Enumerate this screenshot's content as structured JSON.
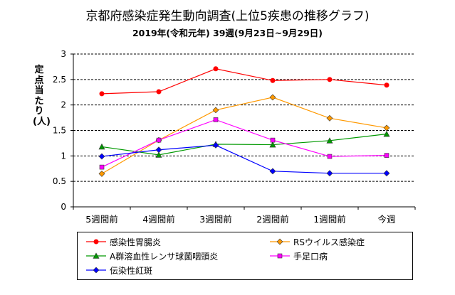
{
  "chart_data": {
    "type": "line",
    "title": "京都府感染症発生動向調査(上位5疾患の推移グラフ)",
    "subtitle": "2019年(令和元年) 39週(9月23日~9月29日)",
    "ylabel": "定点当たり(人)",
    "xlabel": "",
    "categories": [
      "5週間前",
      "4週間前",
      "3週間前",
      "2週間前",
      "1週間前",
      "今週"
    ],
    "ylim": [
      0,
      3
    ],
    "yticks": [
      "0",
      "0.5",
      "1",
      "1.5",
      "2",
      "2.5",
      "3"
    ],
    "grid": "horizontal dashed",
    "legend_position": "bottom",
    "series": [
      {
        "name": "感染性胃腸炎",
        "color": "#ff0000",
        "marker": "circle",
        "values": [
          2.22,
          2.26,
          2.71,
          2.48,
          2.5,
          2.39
        ]
      },
      {
        "name": "RSウイルス感染症",
        "color": "#ff9900",
        "marker": "diamond",
        "values": [
          0.65,
          1.31,
          1.9,
          2.15,
          1.74,
          1.55
        ]
      },
      {
        "name": "A群溶血性レンサ球菌咽頭炎",
        "color": "#009900",
        "marker": "triangle",
        "values": [
          1.18,
          1.02,
          1.23,
          1.22,
          1.3,
          1.43
        ]
      },
      {
        "name": "手足口病",
        "color": "#ff00ff",
        "marker": "square",
        "values": [
          0.78,
          1.31,
          1.71,
          1.31,
          0.99,
          1.01
        ]
      },
      {
        "name": "伝染性紅斑",
        "color": "#0000ff",
        "marker": "diamond",
        "values": [
          0.99,
          1.12,
          1.21,
          0.7,
          0.66,
          0.66
        ]
      }
    ]
  }
}
